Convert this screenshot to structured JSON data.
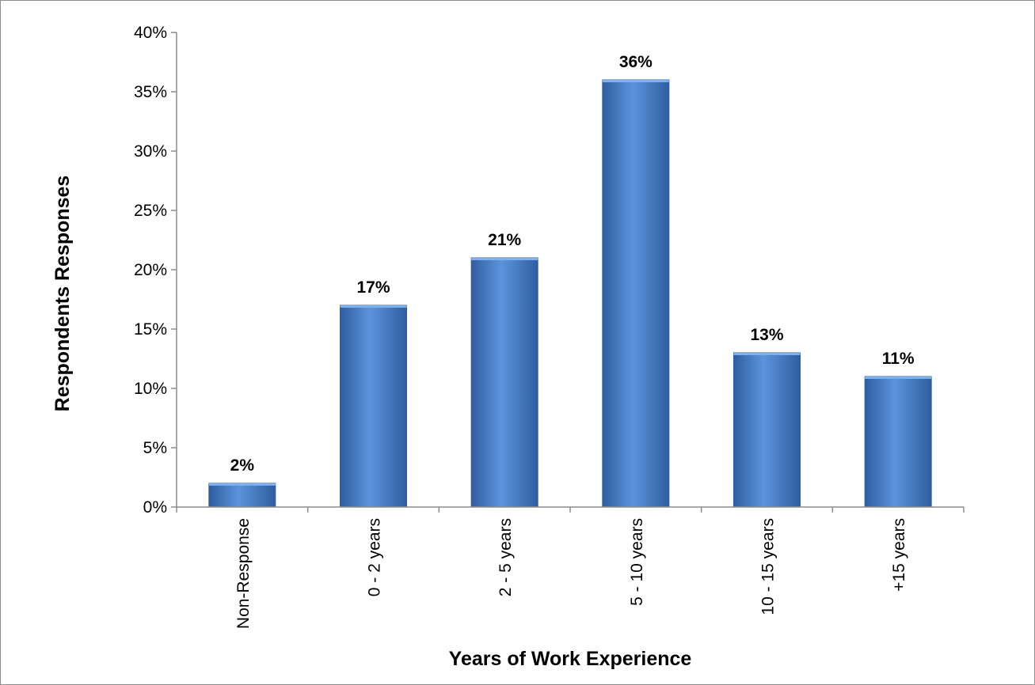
{
  "chart_data": {
    "type": "bar",
    "title": "",
    "xlabel": "Years of Work Experience",
    "ylabel": "Respondents Responses",
    "categories": [
      "Non-Response",
      "0 - 2 years",
      "2 - 5 years",
      "5 - 10 years",
      "10 - 15 years",
      "+15 years"
    ],
    "values": [
      2,
      17,
      21,
      36,
      13,
      11
    ],
    "data_labels": [
      "2%",
      "17%",
      "21%",
      "36%",
      "13%",
      "11%"
    ],
    "ylim": [
      0,
      40
    ],
    "y_ticks": [
      0,
      5,
      10,
      15,
      20,
      25,
      30,
      35,
      40
    ],
    "y_tick_labels": [
      "0%",
      "5%",
      "10%",
      "15%",
      "20%",
      "25%",
      "30%",
      "35%",
      "40%"
    ],
    "grid": false,
    "legend": "none",
    "bar_color": "#4a7fc8",
    "bar_color_light": "#5b94dc",
    "bar_color_dark": "#2f5e9f"
  }
}
